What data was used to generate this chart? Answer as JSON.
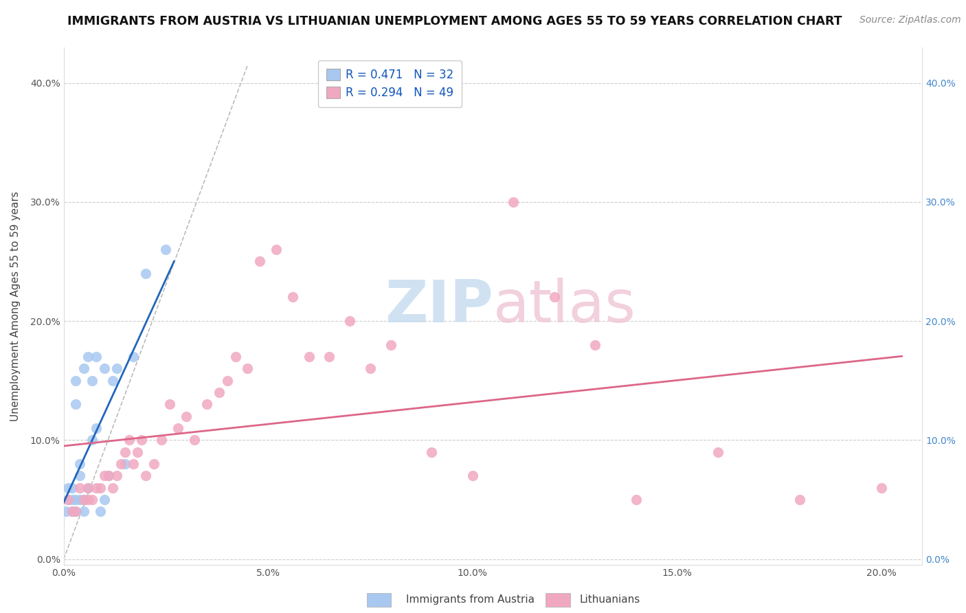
{
  "title": "IMMIGRANTS FROM AUSTRIA VS LITHUANIAN UNEMPLOYMENT AMONG AGES 55 TO 59 YEARS CORRELATION CHART",
  "source": "Source: ZipAtlas.com",
  "ylabel": "Unemployment Among Ages 55 to 59 years",
  "legend_austria": "Immigrants from Austria",
  "legend_lithuanian": "Lithuanians",
  "R_austria": 0.471,
  "N_austria": 32,
  "R_lithuanian": 0.294,
  "N_lithuanian": 49,
  "xlim": [
    0.0,
    0.21
  ],
  "ylim": [
    -0.005,
    0.43
  ],
  "xticks": [
    0.0,
    0.05,
    0.1,
    0.15,
    0.2
  ],
  "yticks": [
    0.0,
    0.1,
    0.2,
    0.3,
    0.4
  ],
  "color_austria": "#a8c8f0",
  "color_lithuanian": "#f0a8c0",
  "line_color_austria": "#2266bb",
  "line_color_lithuanian": "#dd6688",
  "background_color": "#ffffff",
  "grid_color": "#cccccc",
  "title_fontsize": 12.5,
  "source_fontsize": 10,
  "axis_fontsize": 11,
  "tick_fontsize": 10,
  "legend_fontsize": 12,
  "austria_x": [
    0.0005,
    0.001,
    0.001,
    0.002,
    0.002,
    0.002,
    0.003,
    0.003,
    0.003,
    0.003,
    0.004,
    0.004,
    0.004,
    0.005,
    0.005,
    0.005,
    0.006,
    0.006,
    0.007,
    0.007,
    0.008,
    0.008,
    0.009,
    0.01,
    0.01,
    0.011,
    0.012,
    0.013,
    0.015,
    0.017,
    0.02,
    0.025
  ],
  "austria_y": [
    0.04,
    0.05,
    0.06,
    0.04,
    0.05,
    0.06,
    0.04,
    0.05,
    0.13,
    0.15,
    0.05,
    0.07,
    0.08,
    0.04,
    0.05,
    0.16,
    0.06,
    0.17,
    0.1,
    0.15,
    0.11,
    0.17,
    0.04,
    0.05,
    0.16,
    0.07,
    0.15,
    0.16,
    0.08,
    0.17,
    0.24,
    0.26
  ],
  "lithuanian_x": [
    0.001,
    0.002,
    0.003,
    0.004,
    0.005,
    0.006,
    0.006,
    0.007,
    0.008,
    0.009,
    0.01,
    0.011,
    0.012,
    0.013,
    0.014,
    0.015,
    0.016,
    0.017,
    0.018,
    0.019,
    0.02,
    0.022,
    0.024,
    0.026,
    0.028,
    0.03,
    0.032,
    0.035,
    0.038,
    0.04,
    0.042,
    0.045,
    0.048,
    0.052,
    0.056,
    0.06,
    0.065,
    0.07,
    0.075,
    0.08,
    0.09,
    0.1,
    0.11,
    0.12,
    0.13,
    0.14,
    0.16,
    0.18,
    0.2
  ],
  "lithuanian_y": [
    0.05,
    0.04,
    0.04,
    0.06,
    0.05,
    0.05,
    0.06,
    0.05,
    0.06,
    0.06,
    0.07,
    0.07,
    0.06,
    0.07,
    0.08,
    0.09,
    0.1,
    0.08,
    0.09,
    0.1,
    0.07,
    0.08,
    0.1,
    0.13,
    0.11,
    0.12,
    0.1,
    0.13,
    0.14,
    0.15,
    0.17,
    0.16,
    0.25,
    0.26,
    0.22,
    0.17,
    0.17,
    0.2,
    0.16,
    0.18,
    0.09,
    0.07,
    0.3,
    0.22,
    0.18,
    0.05,
    0.09,
    0.05,
    0.06
  ],
  "dash_line_x": [
    0.0,
    0.045
  ],
  "dash_line_y": [
    0.0,
    0.415
  ]
}
